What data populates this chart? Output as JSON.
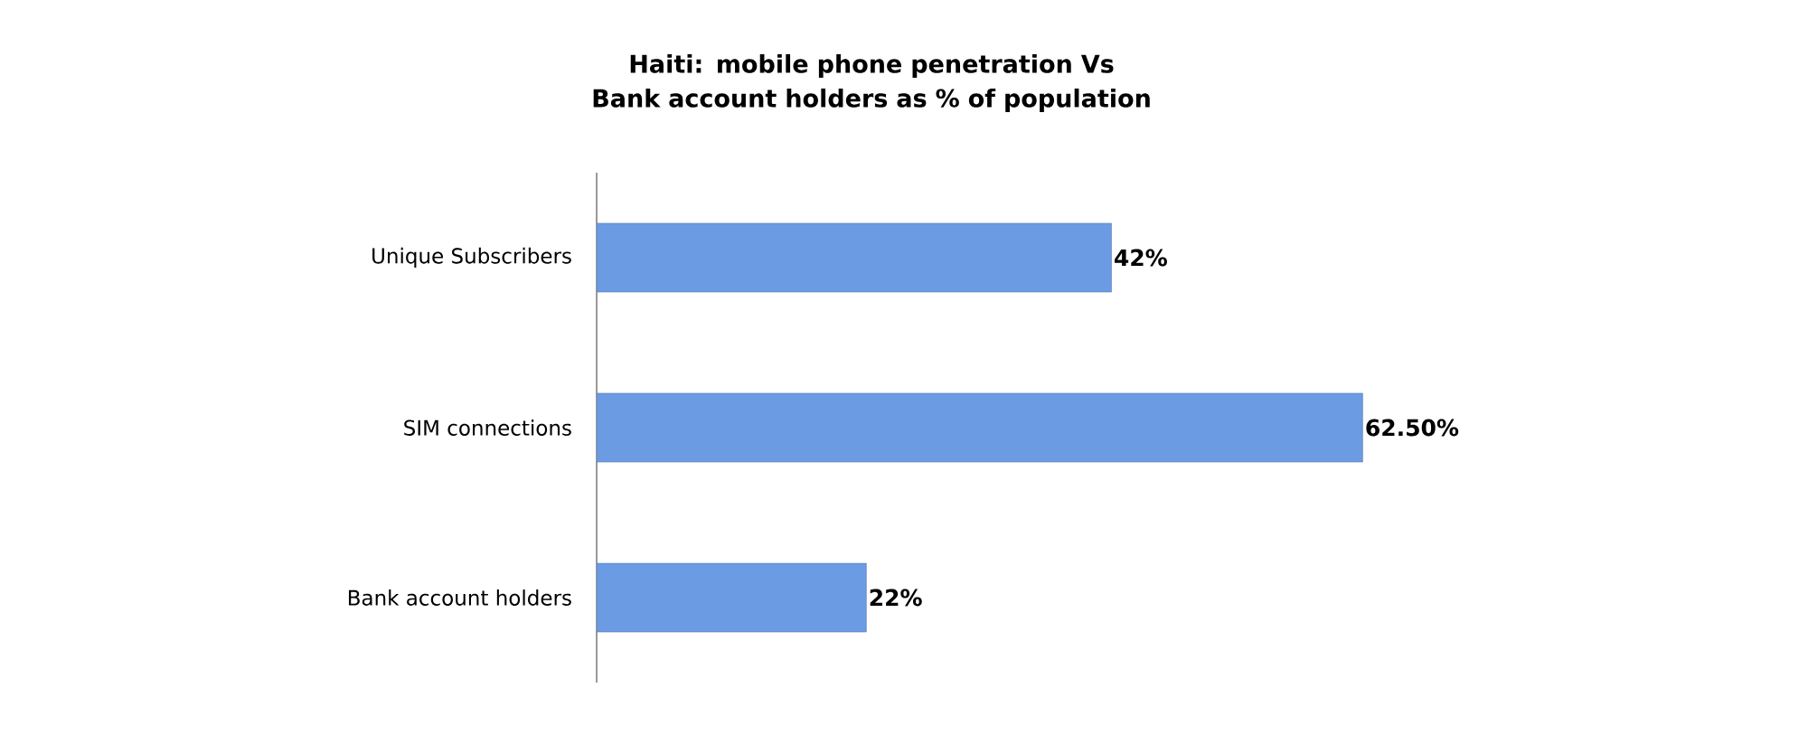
{
  "chart_data": {
    "type": "bar",
    "orientation": "horizontal",
    "title": "Haiti: mobile phone penetration Vs Bank account holders as % of population",
    "categories": [
      "Unique Subscribers",
      "SIM connections",
      "Bank account holders"
    ],
    "values": [
      42,
      62.5,
      22
    ],
    "value_labels": [
      "42%",
      "62.50%",
      "22%"
    ],
    "color": "#6a9be3",
    "grid": false
  }
}
